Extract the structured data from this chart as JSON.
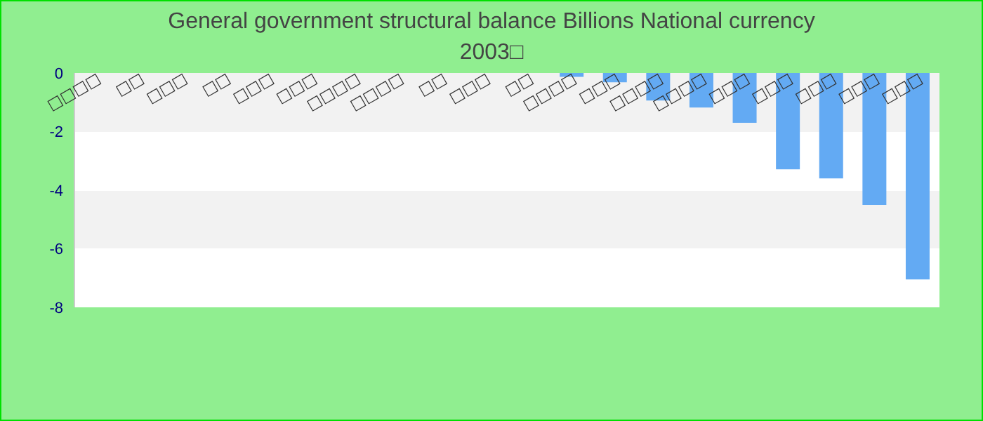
{
  "chart_data": {
    "type": "bar",
    "title": "General government structural balance Billions National currency",
    "subtitle": "2003□",
    "categories": [
      "□□□□",
      "□□",
      "□□□",
      "□□",
      "□□□",
      "□□□",
      "□□□□",
      "□□□□",
      "□□",
      "□□□",
      "□□",
      "□□□□",
      "□□□",
      "□□□□",
      "□□□□",
      "□□□",
      "□□□",
      "□□□",
      "□□□",
      "□□□"
    ],
    "values": [
      null,
      null,
      null,
      null,
      null,
      null,
      null,
      null,
      null,
      null,
      null,
      -0.13,
      -0.32,
      -0.94,
      -1.18,
      -1.7,
      -3.29,
      -3.6,
      -4.5,
      -7.05
    ],
    "color": "#63aaf3",
    "ylim": [
      -8,
      0
    ],
    "yticks": [
      0,
      -2,
      -4,
      -6,
      -8
    ]
  }
}
